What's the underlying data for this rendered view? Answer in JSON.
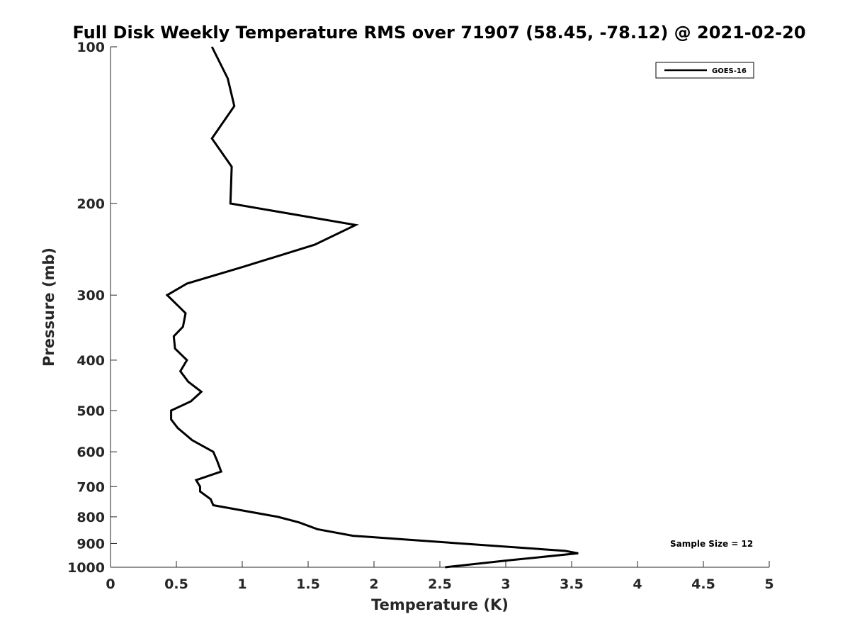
{
  "chart_data": {
    "type": "line",
    "title": "Full Disk Weekly Temperature RMS over 71907 (58.45, -78.12) @ 2021-02-20",
    "xlabel": "Temperature (K)",
    "ylabel": "Pressure (mb)",
    "xlim": [
      0,
      5
    ],
    "ylim": [
      100,
      1000
    ],
    "y_scale": "log",
    "y_reversed": true,
    "x_ticks": [
      0,
      0.5,
      1,
      1.5,
      2,
      2.5,
      3,
      3.5,
      4,
      4.5,
      5
    ],
    "x_tick_labels": [
      "0",
      "0.5",
      "1",
      "1.5",
      "2",
      "2.5",
      "3",
      "3.5",
      "4",
      "4.5",
      "5"
    ],
    "y_ticks": [
      100,
      200,
      300,
      400,
      500,
      600,
      700,
      800,
      900,
      1000
    ],
    "y_tick_labels": [
      "100",
      "200",
      "300",
      "400",
      "500",
      "600",
      "700",
      "800",
      "900",
      "1000"
    ],
    "grid": false,
    "legend_position": "top-right",
    "series": [
      {
        "name": "GOES-16",
        "color": "#000000",
        "x": [
          0.77,
          0.89,
          0.94,
          0.77,
          0.92,
          0.91,
          1.86,
          1.55,
          1.0,
          0.58,
          0.43,
          0.57,
          0.55,
          0.48,
          0.49,
          0.58,
          0.53,
          0.59,
          0.69,
          0.61,
          0.46,
          0.46,
          0.51,
          0.62,
          0.78,
          0.81,
          0.84,
          0.65,
          0.68,
          0.68,
          0.76,
          0.78,
          1.27,
          1.43,
          1.57,
          1.84,
          3.45,
          3.55,
          3.02,
          2.54
        ],
        "y": [
          100,
          115,
          130,
          150,
          170,
          200,
          220,
          240,
          265,
          285,
          300,
          325,
          345,
          360,
          380,
          400,
          420,
          440,
          460,
          480,
          500,
          520,
          540,
          570,
          600,
          625,
          655,
          680,
          700,
          715,
          740,
          760,
          800,
          820,
          845,
          870,
          930,
          940,
          970,
          1000
        ]
      }
    ],
    "annotations": [
      "Sample Size = 12"
    ]
  }
}
